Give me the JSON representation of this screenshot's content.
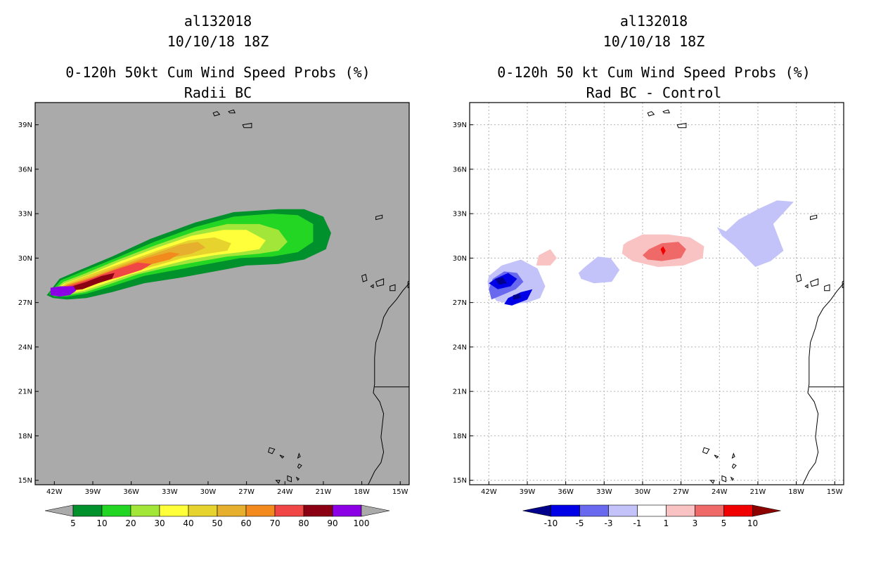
{
  "chart_data": [
    {
      "type": "filled-contour-map",
      "storm_id": "al132018",
      "date": "10/10/18 18Z",
      "title": "0-120h 50kt Cum Wind Speed Probs (%)",
      "subtitle": "Radii BC",
      "background": "#aaaaaa",
      "x_ticks": [
        "42W",
        "39W",
        "36W",
        "33W",
        "30W",
        "27W",
        "24W",
        "21W",
        "18W",
        "15W"
      ],
      "y_ticks": [
        "39N",
        "36N",
        "33N",
        "30N",
        "27N",
        "24N",
        "21N",
        "18N",
        "15N"
      ],
      "xlim_degW": [
        43.5,
        14.3
      ],
      "ylim_degN": [
        14.7,
        40.5
      ],
      "grid": false,
      "colorbar": {
        "labels": [
          "5",
          "10",
          "20",
          "30",
          "40",
          "50",
          "60",
          "70",
          "80",
          "90",
          "100"
        ],
        "colors": [
          "#00902c",
          "#23d623",
          "#a3e63a",
          "#ffff3a",
          "#e7d32d",
          "#e6af2d",
          "#f28a1e",
          "#f04646",
          "#8c0014",
          "#8c00e6"
        ],
        "extend_colors": [
          "#aaaaaa",
          "#aaaaaa"
        ]
      },
      "contours": [
        {
          "level": 5,
          "color": "#00902c",
          "lon": [
            -42.4,
            -41.6,
            -40,
            -37.5,
            -34.5,
            -31,
            -28,
            -24.5,
            -22.5,
            -21,
            -20.4,
            -20.8,
            -22.5,
            -24.5,
            -27,
            -29.5,
            -32,
            -35,
            -37.5,
            -39.5,
            -41,
            -42.1,
            -42.6
          ],
          "lat": [
            27.7,
            28.6,
            29.2,
            30.1,
            31.3,
            32.4,
            33.1,
            33.3,
            33.3,
            32.8,
            31.7,
            30.6,
            29.9,
            29.6,
            29.5,
            29.1,
            28.7,
            28.3,
            27.7,
            27.3,
            27.2,
            27.3,
            27.5
          ]
        },
        {
          "level": 10,
          "color": "#23d623",
          "lon": [
            -42.3,
            -41.5,
            -39.8,
            -37.2,
            -34.2,
            -31,
            -28,
            -25,
            -23,
            -21.8,
            -21.8,
            -23,
            -25,
            -27.5,
            -30,
            -32.5,
            -35,
            -37.5,
            -39.5,
            -41,
            -42,
            -42.4
          ],
          "lat": [
            27.7,
            28.5,
            29.1,
            30,
            31.1,
            32.1,
            32.8,
            33,
            32.9,
            32.3,
            31.1,
            30.4,
            30.1,
            30,
            29.6,
            29.2,
            28.8,
            28.1,
            27.6,
            27.4,
            27.4,
            27.6
          ]
        },
        {
          "level": 20,
          "color": "#a3e63a",
          "lon": [
            -42.2,
            -41.3,
            -39.5,
            -37,
            -34,
            -31,
            -28.5,
            -26,
            -24.5,
            -23.8,
            -24.5,
            -26,
            -28.5,
            -30.5,
            -33,
            -35.5,
            -37.8,
            -39.6,
            -41,
            -41.9,
            -42.3
          ],
          "lat": [
            27.7,
            28.4,
            29,
            29.9,
            30.9,
            31.8,
            32.3,
            32.3,
            31.9,
            31.1,
            30.5,
            30.3,
            30.1,
            29.8,
            29.4,
            28.9,
            28.2,
            27.7,
            27.5,
            27.5,
            27.6
          ]
        },
        {
          "level": 30,
          "color": "#ffff3a",
          "lon": [
            -42.2,
            -41.2,
            -39.3,
            -36.8,
            -34,
            -31.3,
            -28.8,
            -27,
            -25.5,
            -26,
            -27.5,
            -29.5,
            -31.5,
            -33.8,
            -36,
            -38,
            -39.7,
            -41,
            -41.9,
            -42.2
          ],
          "lat": [
            27.7,
            28.3,
            28.9,
            29.8,
            30.7,
            31.5,
            31.9,
            31.9,
            31.2,
            30.6,
            30.4,
            30.2,
            29.9,
            29.4,
            28.9,
            28.3,
            27.8,
            27.6,
            27.6,
            27.6
          ]
        },
        {
          "level": 40,
          "color": "#e7d32d",
          "lon": [
            -42.1,
            -41.1,
            -39.2,
            -36.6,
            -34,
            -31.5,
            -29.5,
            -28.2,
            -28.5,
            -30,
            -32,
            -34,
            -36.2,
            -38.2,
            -39.8,
            -41,
            -41.8,
            -42.1
          ],
          "lat": [
            27.7,
            28.3,
            28.9,
            29.7,
            30.5,
            31.2,
            31.4,
            31,
            30.5,
            30.3,
            30,
            29.5,
            29,
            28.4,
            27.9,
            27.7,
            27.7,
            27.7
          ]
        },
        {
          "level": 50,
          "color": "#e6af2d",
          "lon": [
            -42.1,
            -41,
            -39,
            -36.5,
            -34.2,
            -32.2,
            -30.8,
            -30.2,
            -31.3,
            -33,
            -35,
            -37,
            -38.7,
            -40,
            -41,
            -41.8,
            -42.1
          ],
          "lat": [
            27.7,
            28.2,
            28.8,
            29.6,
            30.3,
            30.9,
            31.1,
            30.7,
            30.3,
            30,
            29.6,
            29.1,
            28.5,
            28,
            27.8,
            27.7,
            27.7
          ]
        },
        {
          "level": 60,
          "color": "#f28a1e",
          "lon": [
            -42.1,
            -41,
            -39,
            -36.8,
            -34.8,
            -33,
            -32.2,
            -33,
            -34.8,
            -36.8,
            -38.6,
            -40,
            -41,
            -41.8,
            -42.1
          ],
          "lat": [
            27.7,
            28.2,
            28.7,
            29.4,
            30,
            30.4,
            30.3,
            29.9,
            29.5,
            29,
            28.5,
            28,
            27.8,
            27.7,
            27.7
          ]
        },
        {
          "level": 70,
          "color": "#f04646",
          "lon": [
            -42,
            -41,
            -39.2,
            -37.3,
            -35.5,
            -34.4,
            -35.2,
            -37,
            -38.7,
            -40,
            -41,
            -41.8,
            -42
          ],
          "lat": [
            27.7,
            28.1,
            28.6,
            29.2,
            29.7,
            29.6,
            29.2,
            28.7,
            28.3,
            27.9,
            27.8,
            27.7,
            27.7
          ]
        },
        {
          "level": 80,
          "color": "#8c0014",
          "lon": [
            -42,
            -41,
            -39.5,
            -38.3,
            -37.3,
            -37.5,
            -38.6,
            -39.8,
            -40.9,
            -41.7,
            -42
          ],
          "lat": [
            27.7,
            28,
            28.4,
            28.8,
            29,
            28.6,
            28.3,
            27.9,
            27.8,
            27.7,
            27.7
          ]
        },
        {
          "level": 90,
          "color": "#8c00e6",
          "lon": [
            -42.3,
            -41.5,
            -40.5,
            -40.3,
            -40.8,
            -41.6,
            -42.3
          ],
          "lat": [
            28,
            28.1,
            28.1,
            27.8,
            27.5,
            27.4,
            27.5
          ]
        }
      ]
    },
    {
      "type": "filled-contour-map",
      "storm_id": "al132018",
      "date": "10/10/18 18Z",
      "title": "0-120h 50 kt Cum Wind Speed Probs (%)",
      "subtitle": "Rad BC - Control",
      "background": "#ffffff",
      "x_ticks": [
        "42W",
        "39W",
        "36W",
        "33W",
        "30W",
        "27W",
        "24W",
        "21W",
        "18W",
        "15W"
      ],
      "y_ticks": [
        "39N",
        "36N",
        "33N",
        "30N",
        "27N",
        "24N",
        "21N",
        "18N",
        "15N"
      ],
      "xlim_degW": [
        43.5,
        14.3
      ],
      "ylim_degN": [
        14.7,
        40.5
      ],
      "grid": true,
      "colorbar": {
        "labels": [
          "-10",
          "-5",
          "-3",
          "-1",
          "1",
          "3",
          "5",
          "10"
        ],
        "colors": [
          "#0000e6",
          "#6969f0",
          "#c3c3fa",
          "#ffffff",
          "#fac3c3",
          "#f06969",
          "#f00000"
        ],
        "extend_colors": [
          "#00008c",
          "#8c0000"
        ]
      },
      "contours": [
        {
          "level": -1,
          "color": "#c3c3fa",
          "lon": [
            -42,
            -41,
            -39.5,
            -38.2,
            -37.6,
            -38,
            -39,
            -40.3,
            -41.4,
            -42,
            -42.1
          ],
          "lat": [
            28.8,
            29.5,
            29.9,
            29.3,
            28.1,
            27.3,
            27,
            26.9,
            27.1,
            27.8,
            28.4
          ]
        },
        {
          "level": -1,
          "color": "#c3c3fa",
          "lon": [
            -34.5,
            -33.5,
            -32.5,
            -31.8,
            -32.4,
            -33.8,
            -34.8,
            -35
          ],
          "lat": [
            29.4,
            30.1,
            30,
            29.2,
            28.4,
            28.3,
            28.6,
            29
          ]
        },
        {
          "level": -1,
          "color": "#c3c3fa",
          "lon": [
            -23.5,
            -22.5,
            -21,
            -19.5,
            -18.2,
            -19.8,
            -19,
            -20,
            -21.2,
            -22.8,
            -23.8,
            -24.2
          ],
          "lat": [
            31.8,
            32.6,
            33.3,
            33.9,
            33.8,
            32.3,
            30.5,
            29.8,
            29.4,
            30.8,
            31.5,
            32.1
          ]
        },
        {
          "level": 1,
          "color": "#fac3c3",
          "lon": [
            -31.2,
            -30,
            -28,
            -26.3,
            -25.2,
            -25.3,
            -26.8,
            -28.8,
            -30.8,
            -31.6,
            -31.5
          ],
          "lat": [
            31.1,
            31.6,
            31.6,
            31.4,
            30.8,
            30,
            29.5,
            29.4,
            29.8,
            30.3,
            30.9
          ]
        },
        {
          "level": 1,
          "color": "#fac3c3",
          "lon": [
            -38.1,
            -37.2,
            -36.7,
            -37.2,
            -38.3
          ],
          "lat": [
            30.2,
            30.6,
            30,
            29.5,
            29.5
          ]
        },
        {
          "level": -3,
          "color": "#6969f0",
          "lon": [
            -41.7,
            -40.8,
            -39.8,
            -39.3,
            -39.9,
            -40.7,
            -41.8,
            -42
          ],
          "lat": [
            28.6,
            29.1,
            29,
            28.4,
            27.9,
            27.6,
            27.2,
            27.9
          ]
        },
        {
          "level": 3,
          "color": "#f06969",
          "lon": [
            -29.5,
            -28.5,
            -27.2,
            -26.6,
            -27,
            -28.5,
            -29.6,
            -30
          ],
          "lat": [
            30.6,
            31,
            31.1,
            30.6,
            30,
            29.8,
            29.9,
            30.2
          ]
        },
        {
          "level": -5,
          "color": "#0000e6",
          "lon": [
            -41.5,
            -40.5,
            -39.8,
            -40.3,
            -41.3,
            -42
          ],
          "lat": [
            28.6,
            29,
            28.6,
            28.1,
            27.9,
            28.3
          ]
        },
        {
          "level": -5,
          "color": "#0000e6",
          "lon": [
            -40.5,
            -39.5,
            -38.6,
            -39,
            -40.2,
            -40.8
          ],
          "lat": [
            27.3,
            27.7,
            27.9,
            27.2,
            26.8,
            26.9
          ]
        },
        {
          "level": 5,
          "color": "#f00000",
          "lon": [
            -28.6,
            -28.4,
            -28.2,
            -28.4
          ],
          "lat": [
            30.6,
            30.8,
            30.5,
            30.2
          ]
        },
        {
          "level": -10,
          "color": "#00008c",
          "lon": [
            -41.5,
            -40.9,
            -40.6,
            -41.2
          ],
          "lat": [
            28.6,
            28.7,
            28.3,
            28.2
          ]
        },
        {
          "level": -10,
          "color": "#00008c",
          "lon": [
            -40.1,
            -39.6,
            -39.5,
            -40.1
          ],
          "lat": [
            27.5,
            27.6,
            27.3,
            27.2
          ]
        }
      ]
    }
  ],
  "left_panel": {
    "storm_id": "al132018",
    "date": "10/10/18 18Z",
    "title": "0-120h 50kt Cum Wind Speed Probs (%)",
    "subtitle": "Radii BC"
  },
  "right_panel": {
    "storm_id": "al132018",
    "date": "10/10/18 18Z",
    "title": "0-120h 50 kt Cum Wind Speed Probs (%)",
    "subtitle": "Rad BC - Control"
  }
}
